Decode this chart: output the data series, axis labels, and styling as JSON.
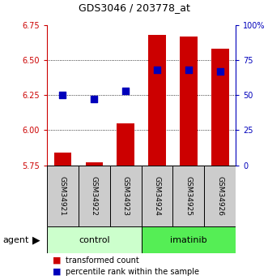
{
  "title": "GDS3046 / 203778_at",
  "samples": [
    "GSM34921",
    "GSM34922",
    "GSM34923",
    "GSM34924",
    "GSM34925",
    "GSM34926"
  ],
  "transformed_counts": [
    5.84,
    5.77,
    6.05,
    6.68,
    6.67,
    6.58
  ],
  "percentile_ranks": [
    50,
    47,
    53,
    68,
    68,
    67
  ],
  "ylim_left": [
    5.75,
    6.75
  ],
  "ylim_right": [
    0,
    100
  ],
  "yticks_left": [
    5.75,
    6.0,
    6.25,
    6.5,
    6.75
  ],
  "yticks_right": [
    0,
    25,
    50,
    75,
    100
  ],
  "ytick_labels_right": [
    "0",
    "25",
    "50",
    "75",
    "100%"
  ],
  "grid_lines": [
    6.0,
    6.25,
    6.5
  ],
  "bar_color": "#cc0000",
  "dot_color": "#0000bb",
  "control_color": "#ccffcc",
  "imatinib_color": "#55ee55",
  "sample_box_color": "#cccccc",
  "left_axis_color": "#cc0000",
  "right_axis_color": "#0000bb",
  "bar_width": 0.55,
  "dot_size": 28,
  "title_fontsize": 9,
  "tick_fontsize": 7,
  "sample_fontsize": 6.5,
  "group_fontsize": 8,
  "legend_fontsize": 7,
  "agent_fontsize": 8
}
